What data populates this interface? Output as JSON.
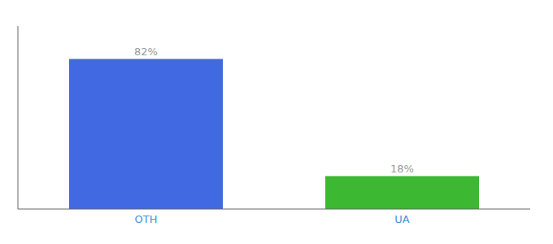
{
  "chart_data": {
    "type": "bar",
    "categories": [
      "OTH",
      "UA"
    ],
    "values": [
      82,
      18
    ],
    "value_labels": [
      "82%",
      "18%"
    ],
    "data_labels": true,
    "colors": [
      "#4169E1",
      "#3CB832"
    ],
    "ylim": [
      0,
      100
    ],
    "yticks": [],
    "tick_labels": "x",
    "grid": false
  }
}
